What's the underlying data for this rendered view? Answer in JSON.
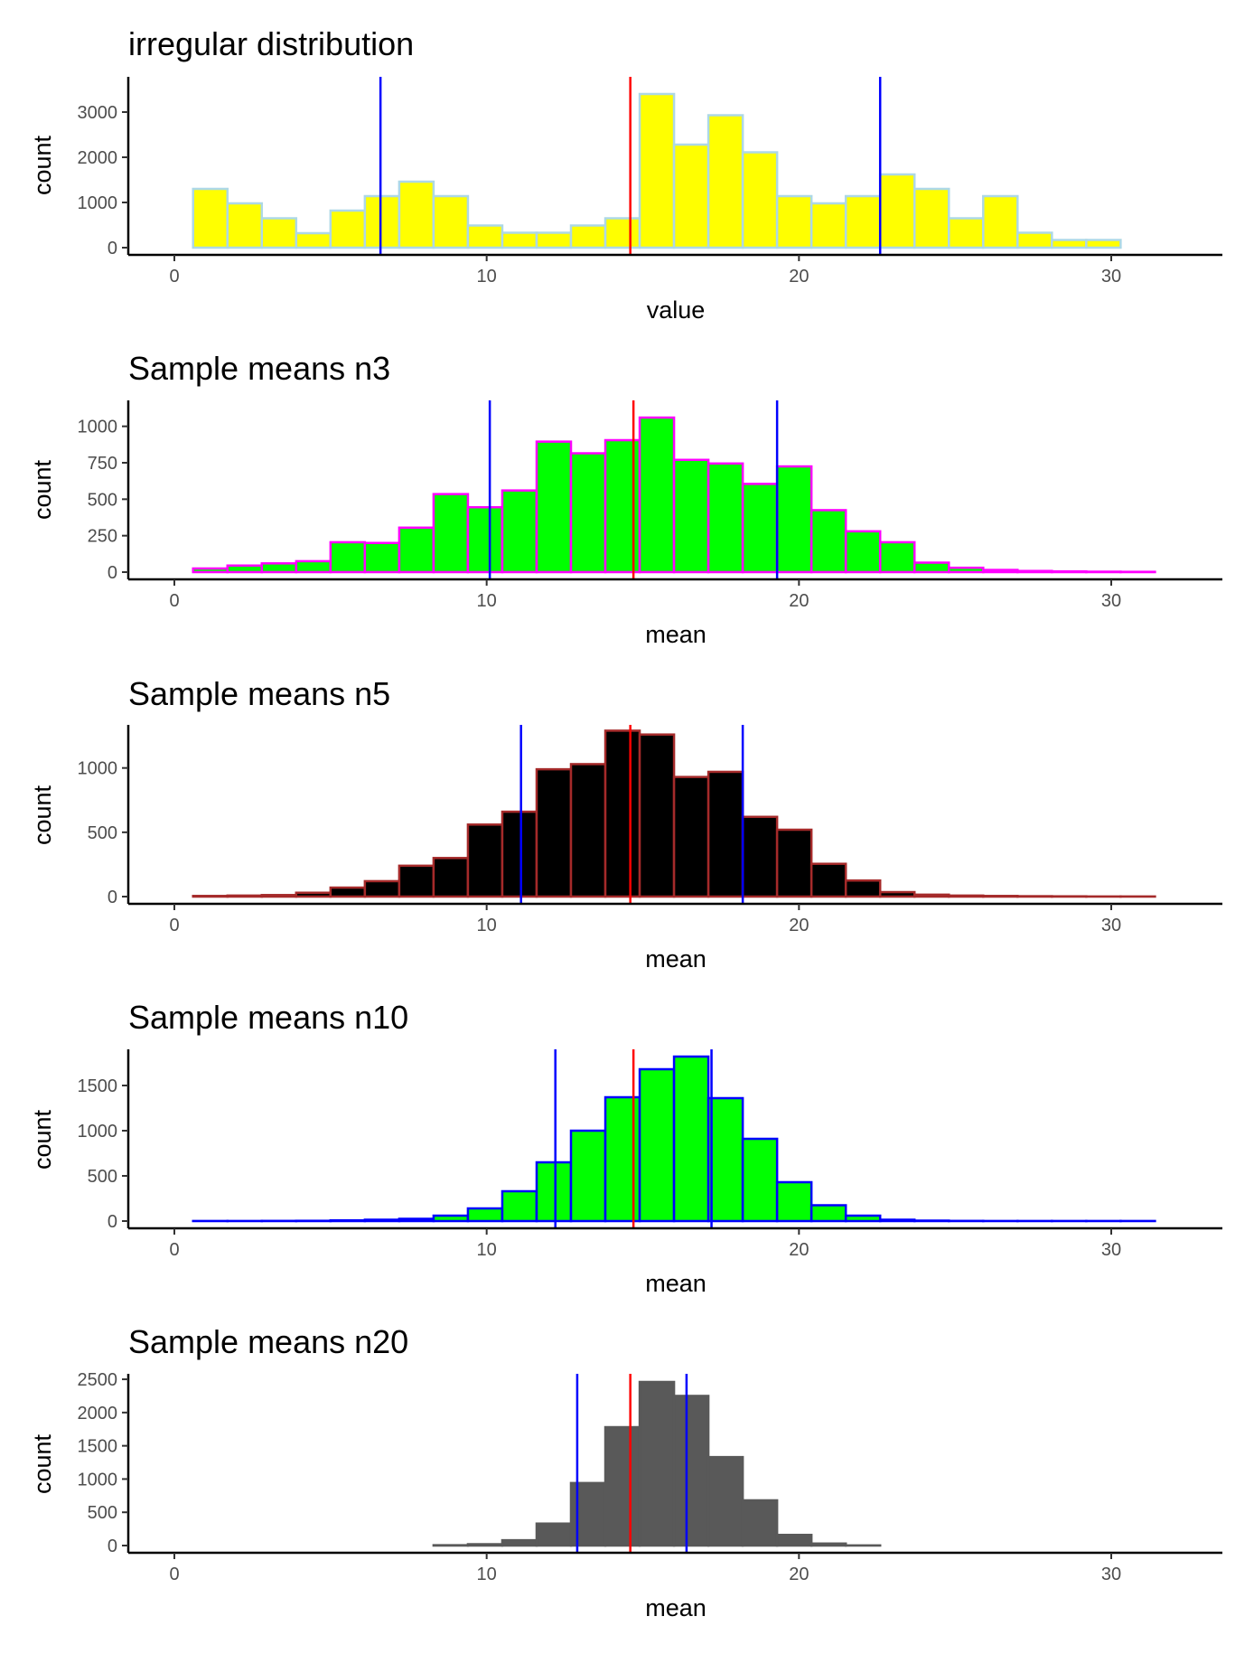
{
  "chart_data": [
    {
      "type": "bar",
      "title": "irregular distribution",
      "xlabel": "value",
      "ylabel": "count",
      "xlim": [
        0,
        31.5
      ],
      "ylim": [
        0,
        3400
      ],
      "x_ticks": [
        0,
        10,
        20,
        30
      ],
      "y_ticks": [
        0,
        1000,
        2000,
        3000
      ],
      "bin_start": 0.6,
      "bin_width": 1.1,
      "values": [
        1300,
        980,
        650,
        320,
        820,
        1140,
        1460,
        1140,
        490,
        330,
        330,
        490,
        650,
        3400,
        2280,
        2930,
        2110,
        1140,
        980,
        1140,
        1620,
        1300,
        650,
        1140,
        330,
        170,
        170,
        0
      ],
      "fill": "#ffff00",
      "outline": "#add8e6",
      "mean_line": 14.6,
      "sd_lines": [
        6.6,
        22.6
      ],
      "mean_color": "#ff0000",
      "sd_color": "#0000ff",
      "grid": false
    },
    {
      "type": "bar",
      "title": "Sample means n3",
      "xlabel": "mean",
      "ylabel": "count",
      "xlim": [
        0,
        31.5
      ],
      "ylim": [
        0,
        1060
      ],
      "x_ticks": [
        0,
        10,
        20,
        30
      ],
      "y_ticks": [
        0,
        250,
        500,
        750,
        1000
      ],
      "bin_start": 0.6,
      "bin_width": 1.1,
      "values": [
        25,
        45,
        60,
        75,
        205,
        200,
        305,
        535,
        445,
        560,
        895,
        815,
        905,
        1060,
        770,
        745,
        605,
        725,
        425,
        280,
        205,
        65,
        30,
        15,
        8,
        5,
        3,
        2
      ],
      "fill": "#00ff00",
      "outline": "#ff00ff",
      "mean_line": 14.7,
      "sd_lines": [
        10.1,
        19.3
      ],
      "mean_color": "#ff0000",
      "sd_color": "#0000ff",
      "grid": false
    },
    {
      "type": "bar",
      "title": "Sample means n5",
      "xlabel": "mean",
      "ylabel": "count",
      "xlim": [
        0,
        31.5
      ],
      "ylim": [
        0,
        1300
      ],
      "x_ticks": [
        0,
        10,
        20,
        30
      ],
      "y_ticks": [
        0,
        500,
        1000
      ],
      "bin_start": 0.6,
      "bin_width": 1.1,
      "values": [
        5,
        8,
        12,
        30,
        70,
        120,
        240,
        300,
        560,
        660,
        990,
        1030,
        1290,
        1260,
        930,
        970,
        620,
        520,
        255,
        125,
        35,
        15,
        8,
        5,
        3,
        2,
        1,
        1
      ],
      "fill": "#000000",
      "outline": "#a52a2a",
      "mean_line": 14.6,
      "sd_lines": [
        11.1,
        18.2
      ],
      "mean_color": "#ff0000",
      "sd_color": "#0000ff",
      "grid": false
    },
    {
      "type": "bar",
      "title": "Sample means n10",
      "xlabel": "mean",
      "ylabel": "count",
      "xlim": [
        0,
        31.5
      ],
      "ylim": [
        0,
        1820
      ],
      "x_ticks": [
        0,
        10,
        20,
        30
      ],
      "y_ticks": [
        0,
        500,
        1000,
        1500
      ],
      "bin_start": 0.6,
      "bin_width": 1.1,
      "values": [
        1,
        1,
        2,
        3,
        8,
        15,
        25,
        60,
        140,
        330,
        650,
        1000,
        1370,
        1680,
        1820,
        1360,
        910,
        430,
        175,
        60,
        15,
        5,
        2,
        1,
        1,
        1,
        1,
        1
      ],
      "fill": "#00ff00",
      "outline": "#0000ff",
      "mean_line": 14.7,
      "sd_lines": [
        12.2,
        17.2
      ],
      "mean_color": "#ff0000",
      "sd_color": "#0000ff",
      "grid": false
    },
    {
      "type": "bar",
      "title": "Sample means n20",
      "xlabel": "mean",
      "ylabel": "count",
      "xlim": [
        0,
        31.5
      ],
      "ylim": [
        0,
        2460
      ],
      "x_ticks": [
        0,
        10,
        20,
        30
      ],
      "y_ticks": [
        0,
        500,
        1000,
        1500,
        2000,
        2500
      ],
      "bin_start": 0.6,
      "bin_width": 1.1,
      "values": [
        0,
        0,
        0,
        0,
        0,
        0,
        0,
        5,
        20,
        80,
        330,
        940,
        1780,
        2460,
        2250,
        1330,
        680,
        160,
        30,
        2,
        0,
        0,
        0,
        0,
        0,
        0,
        0,
        0
      ],
      "fill": "#595959",
      "outline": "#595959",
      "mean_line": 14.6,
      "sd_lines": [
        12.9,
        16.4
      ],
      "mean_color": "#ff0000",
      "sd_color": "#0000ff",
      "grid": false
    }
  ]
}
